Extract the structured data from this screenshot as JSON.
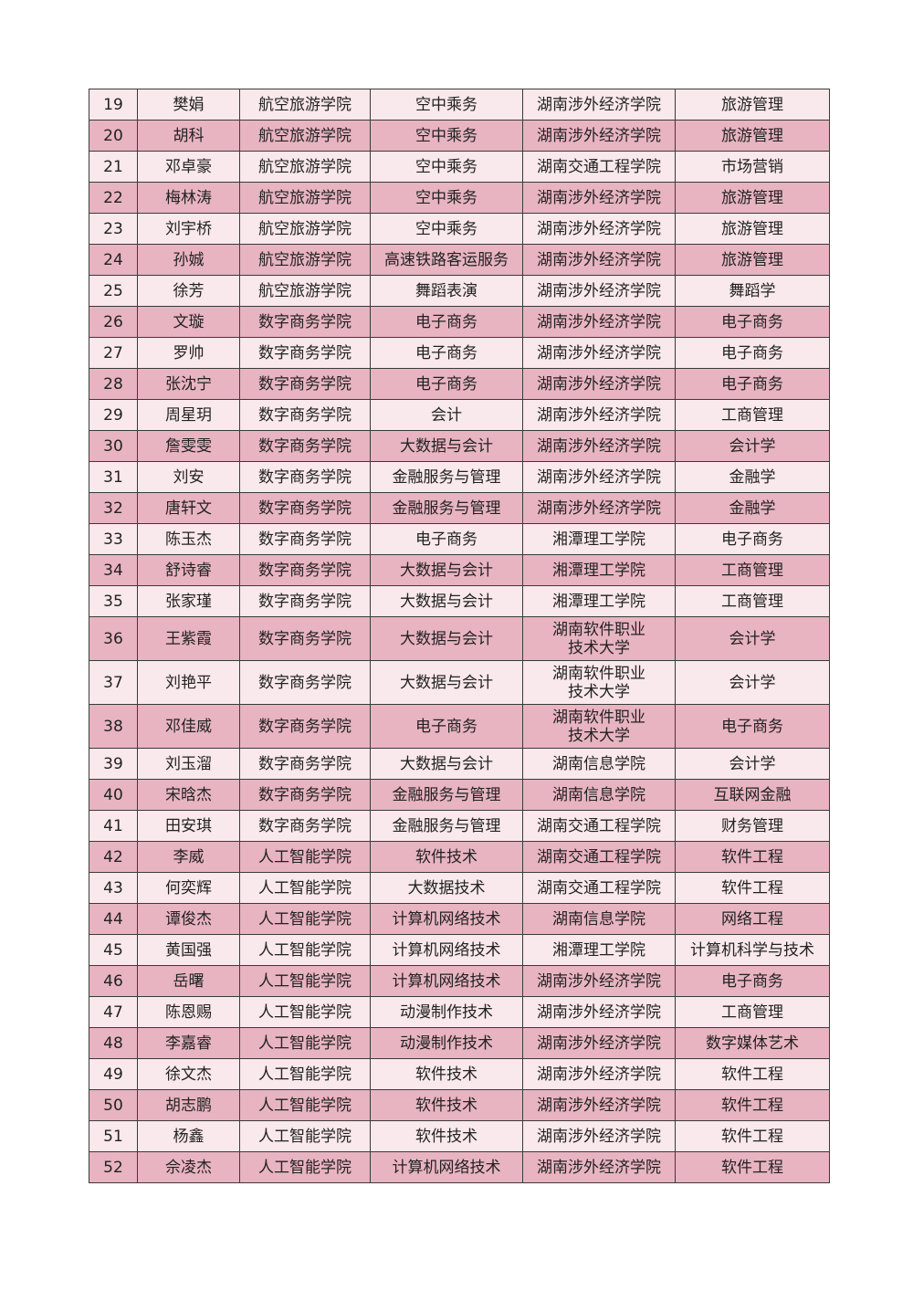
{
  "colors": {
    "light_row": "#f9e8ec",
    "dark_row": "#e8b4c1",
    "border": "#3a3a3a"
  },
  "rows": [
    {
      "no": "19",
      "name": "樊娟",
      "college": "航空旅游学院",
      "major": "空中乘务",
      "school": "湖南涉外经济学院",
      "target": "旅游管理"
    },
    {
      "no": "20",
      "name": "胡科",
      "college": "航空旅游学院",
      "major": "空中乘务",
      "school": "湖南涉外经济学院",
      "target": "旅游管理"
    },
    {
      "no": "21",
      "name": "邓卓豪",
      "college": "航空旅游学院",
      "major": "空中乘务",
      "school": "湖南交通工程学院",
      "target": "市场营销"
    },
    {
      "no": "22",
      "name": "梅林涛",
      "college": "航空旅游学院",
      "major": "空中乘务",
      "school": "湖南涉外经济学院",
      "target": "旅游管理"
    },
    {
      "no": "23",
      "name": "刘宇桥",
      "college": "航空旅游学院",
      "major": "空中乘务",
      "school": "湖南涉外经济学院",
      "target": "旅游管理"
    },
    {
      "no": "24",
      "name": "孙娍",
      "college": "航空旅游学院",
      "major": "高速铁路客运服务",
      "school": "湖南涉外经济学院",
      "target": "旅游管理"
    },
    {
      "no": "25",
      "name": "徐芳",
      "college": "航空旅游学院",
      "major": "舞蹈表演",
      "school": "湖南涉外经济学院",
      "target": "舞蹈学"
    },
    {
      "no": "26",
      "name": "文璇",
      "college": "数字商务学院",
      "major": "电子商务",
      "school": "湖南涉外经济学院",
      "target": "电子商务"
    },
    {
      "no": "27",
      "name": "罗帅",
      "college": "数字商务学院",
      "major": "电子商务",
      "school": "湖南涉外经济学院",
      "target": "电子商务"
    },
    {
      "no": "28",
      "name": "张沈宁",
      "college": "数字商务学院",
      "major": "电子商务",
      "school": "湖南涉外经济学院",
      "target": "电子商务"
    },
    {
      "no": "29",
      "name": "周星玥",
      "college": "数字商务学院",
      "major": "会计",
      "school": "湖南涉外经济学院",
      "target": "工商管理"
    },
    {
      "no": "30",
      "name": "詹雯雯",
      "college": "数字商务学院",
      "major": "大数据与会计",
      "school": "湖南涉外经济学院",
      "target": "会计学"
    },
    {
      "no": "31",
      "name": "刘安",
      "college": "数字商务学院",
      "major": "金融服务与管理",
      "school": "湖南涉外经济学院",
      "target": "金融学"
    },
    {
      "no": "32",
      "name": "唐轩文",
      "college": "数字商务学院",
      "major": "金融服务与管理",
      "school": "湖南涉外经济学院",
      "target": "金融学"
    },
    {
      "no": "33",
      "name": "陈玉杰",
      "college": "数字商务学院",
      "major": "电子商务",
      "school": "湘潭理工学院",
      "target": "电子商务"
    },
    {
      "no": "34",
      "name": "舒诗睿",
      "college": "数字商务学院",
      "major": "大数据与会计",
      "school": "湘潭理工学院",
      "target": "工商管理"
    },
    {
      "no": "35",
      "name": "张家瑾",
      "college": "数字商务学院",
      "major": "大数据与会计",
      "school": "湘潭理工学院",
      "target": "工商管理"
    },
    {
      "no": "36",
      "name": "王紫霞",
      "college": "数字商务学院",
      "major": "大数据与会计",
      "school": "湖南软件职业\n技术大学",
      "target": "会计学"
    },
    {
      "no": "37",
      "name": "刘艳平",
      "college": "数字商务学院",
      "major": "大数据与会计",
      "school": "湖南软件职业\n技术大学",
      "target": "会计学"
    },
    {
      "no": "38",
      "name": "邓佳威",
      "college": "数字商务学院",
      "major": "电子商务",
      "school": "湖南软件职业\n技术大学",
      "target": "电子商务"
    },
    {
      "no": "39",
      "name": "刘玉溜",
      "college": "数字商务学院",
      "major": "大数据与会计",
      "school": "湖南信息学院",
      "target": "会计学"
    },
    {
      "no": "40",
      "name": "宋晗杰",
      "college": "数字商务学院",
      "major": "金融服务与管理",
      "school": "湖南信息学院",
      "target": "互联网金融"
    },
    {
      "no": "41",
      "name": "田安琪",
      "college": "数字商务学院",
      "major": "金融服务与管理",
      "school": "湖南交通工程学院",
      "target": "财务管理"
    },
    {
      "no": "42",
      "name": "李威",
      "college": "人工智能学院",
      "major": "软件技术",
      "school": "湖南交通工程学院",
      "target": "软件工程"
    },
    {
      "no": "43",
      "name": "何奕辉",
      "college": "人工智能学院",
      "major": "大数据技术",
      "school": "湖南交通工程学院",
      "target": "软件工程"
    },
    {
      "no": "44",
      "name": "谭俊杰",
      "college": "人工智能学院",
      "major": "计算机网络技术",
      "school": "湖南信息学院",
      "target": "网络工程"
    },
    {
      "no": "45",
      "name": "黄国强",
      "college": "人工智能学院",
      "major": "计算机网络技术",
      "school": "湘潭理工学院",
      "target": "计算机科学与技术"
    },
    {
      "no": "46",
      "name": "岳曙",
      "college": "人工智能学院",
      "major": "计算机网络技术",
      "school": "湖南涉外经济学院",
      "target": "电子商务"
    },
    {
      "no": "47",
      "name": "陈恩赐",
      "college": "人工智能学院",
      "major": "动漫制作技术",
      "school": "湖南涉外经济学院",
      "target": "工商管理"
    },
    {
      "no": "48",
      "name": "李嘉睿",
      "college": "人工智能学院",
      "major": "动漫制作技术",
      "school": "湖南涉外经济学院",
      "target": "数字媒体艺术"
    },
    {
      "no": "49",
      "name": "徐文杰",
      "college": "人工智能学院",
      "major": "软件技术",
      "school": "湖南涉外经济学院",
      "target": "软件工程"
    },
    {
      "no": "50",
      "name": "胡志鹏",
      "college": "人工智能学院",
      "major": "软件技术",
      "school": "湖南涉外经济学院",
      "target": "软件工程"
    },
    {
      "no": "51",
      "name": "杨鑫",
      "college": "人工智能学院",
      "major": "软件技术",
      "school": "湖南涉外经济学院",
      "target": "软件工程"
    },
    {
      "no": "52",
      "name": "佘凌杰",
      "college": "人工智能学院",
      "major": "计算机网络技术",
      "school": "湖南涉外经济学院",
      "target": "软件工程"
    }
  ]
}
